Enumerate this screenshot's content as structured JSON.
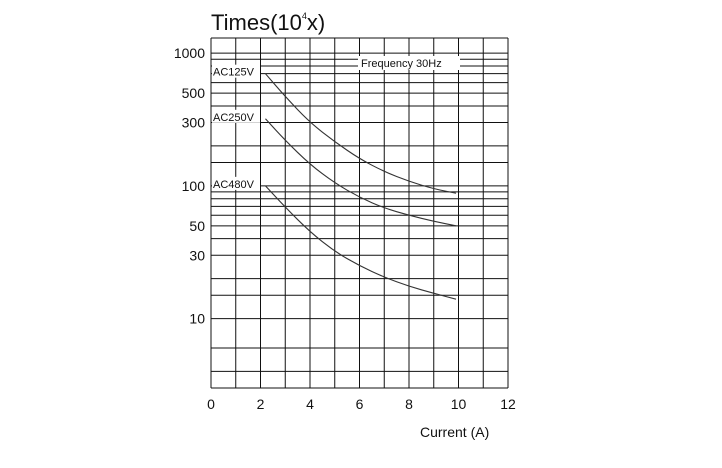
{
  "chart_data": {
    "type": "line",
    "title_main": "Times(10",
    "title_exp": "4",
    "title_end": "x)",
    "xlabel": "Current (A)",
    "ylabel": "",
    "annotation": "Frequency 30Hz",
    "x_scale": "linear",
    "y_scale": "log",
    "xlim": [
      0,
      12
    ],
    "ylim": [
      3,
      1300
    ],
    "x_ticks": [
      0,
      2,
      4,
      6,
      8,
      10,
      12
    ],
    "x_tick_labels": [
      "0",
      "2",
      "4",
      "6",
      "8",
      "10",
      "12"
    ],
    "y_ticks": [
      10,
      30,
      50,
      100,
      300,
      500,
      1000
    ],
    "y_tick_labels": [
      "10",
      "30",
      "50",
      "100",
      "300",
      "500",
      "1000"
    ],
    "y_gridlines": [
      4,
      6,
      10,
      15,
      20,
      30,
      40,
      50,
      60,
      70,
      80,
      90,
      100,
      150,
      200,
      300,
      400,
      500,
      600,
      700,
      800,
      900,
      1000
    ],
    "grid": true,
    "line_color": "#333333",
    "series": [
      {
        "name": "AC125V",
        "x": [
          2.2,
          3,
          4,
          5,
          6,
          7,
          8,
          9,
          9.9
        ],
        "y": [
          700,
          470,
          300,
          215,
          160,
          128,
          108,
          95,
          88
        ]
      },
      {
        "name": "AC250V",
        "x": [
          2.2,
          3,
          4,
          5,
          6,
          7,
          8,
          9,
          9.9
        ],
        "y": [
          320,
          220,
          145,
          105,
          82,
          68,
          60,
          54,
          50
        ]
      },
      {
        "name": "AC480V",
        "x": [
          2.2,
          3,
          4,
          5,
          6,
          7,
          8,
          9,
          9.9
        ],
        "y": [
          100,
          69,
          45,
          32,
          25,
          20.5,
          17.5,
          15.5,
          14
        ]
      }
    ]
  }
}
